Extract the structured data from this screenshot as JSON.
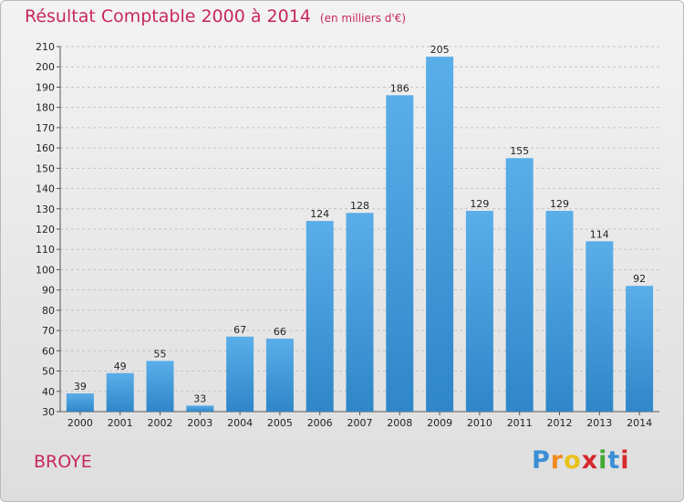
{
  "title": "Résultat Comptable 2000 à 2014",
  "subtitle": "(en milliers d'€)",
  "location": "BROYE",
  "brand": {
    "text": "Proxiti",
    "letters": [
      "P",
      "r",
      "o",
      "x",
      "i",
      "t",
      "i"
    ],
    "colors": [
      "#3a8fd6",
      "#f08c1e",
      "#e8c21c",
      "#d6282e",
      "#43a832",
      "#3a8fd6",
      "#d6282e"
    ]
  },
  "colors": {
    "bar_light": "#5aaee9",
    "bar_dark": "#2f86c8",
    "title": "#c8285a"
  },
  "chart_data": {
    "type": "bar",
    "title": "Résultat Comptable 2000 à 2014",
    "ylabel": "en milliers d'€",
    "xlabel": "",
    "categories": [
      "2000",
      "2001",
      "2002",
      "2003",
      "2004",
      "2005",
      "2006",
      "2007",
      "2008",
      "2009",
      "2010",
      "2011",
      "2012",
      "2013",
      "2014"
    ],
    "values": [
      39,
      49,
      55,
      33,
      67,
      66,
      124,
      128,
      186,
      205,
      129,
      155,
      129,
      114,
      92
    ],
    "ylim": [
      30,
      210
    ],
    "yticks": [
      30,
      40,
      50,
      60,
      70,
      80,
      90,
      100,
      110,
      120,
      130,
      140,
      150,
      160,
      170,
      180,
      190,
      200,
      210
    ],
    "grid": true
  }
}
